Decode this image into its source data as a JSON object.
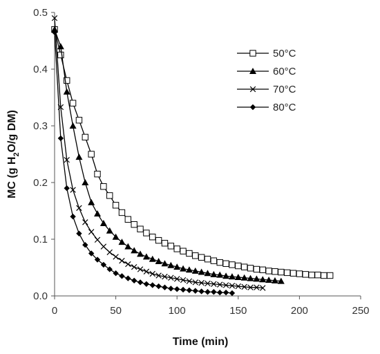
{
  "chart_data": {
    "type": "line",
    "xlabel": "Time (min)",
    "ylabel_parts": [
      "MC (g H",
      "2",
      "O/g DM)"
    ],
    "xlim": [
      0,
      250
    ],
    "ylim": [
      0,
      0.5
    ],
    "x_ticks": [
      "0",
      "50",
      "100",
      "150",
      "200",
      "250"
    ],
    "y_ticks": [
      "0.0",
      "0.1",
      "0.2",
      "0.3",
      "0.4",
      "0.5"
    ],
    "grid": false,
    "legend_position": "top-right",
    "series": [
      {
        "name": "50°C",
        "marker": "square-open",
        "x": [
          0,
          5,
          10,
          15,
          20,
          25,
          30,
          35,
          40,
          45,
          50,
          55,
          60,
          65,
          70,
          75,
          80,
          85,
          90,
          95,
          100,
          105,
          110,
          115,
          120,
          125,
          130,
          135,
          140,
          145,
          150,
          155,
          160,
          165,
          170,
          175,
          180,
          185,
          190,
          195,
          200,
          205,
          210,
          215,
          220,
          225
        ],
        "y": [
          0.47,
          0.425,
          0.38,
          0.34,
          0.31,
          0.28,
          0.25,
          0.215,
          0.193,
          0.177,
          0.16,
          0.147,
          0.135,
          0.126,
          0.118,
          0.111,
          0.104,
          0.098,
          0.093,
          0.088,
          0.083,
          0.079,
          0.075,
          0.071,
          0.068,
          0.065,
          0.062,
          0.059,
          0.057,
          0.055,
          0.053,
          0.051,
          0.049,
          0.047,
          0.046,
          0.044,
          0.043,
          0.042,
          0.041,
          0.04,
          0.039,
          0.038,
          0.037,
          0.037,
          0.036,
          0.036
        ]
      },
      {
        "name": "60°C",
        "marker": "triangle-filled",
        "x": [
          0,
          5,
          10,
          15,
          20,
          25,
          30,
          35,
          40,
          45,
          50,
          55,
          60,
          65,
          70,
          75,
          80,
          85,
          90,
          95,
          100,
          105,
          110,
          115,
          120,
          125,
          130,
          135,
          140,
          145,
          150,
          155,
          160,
          165,
          170,
          175,
          180,
          185
        ],
        "y": [
          0.47,
          0.44,
          0.36,
          0.3,
          0.245,
          0.2,
          0.165,
          0.145,
          0.128,
          0.115,
          0.104,
          0.095,
          0.087,
          0.08,
          0.074,
          0.069,
          0.065,
          0.061,
          0.057,
          0.054,
          0.051,
          0.048,
          0.046,
          0.044,
          0.042,
          0.04,
          0.038,
          0.037,
          0.035,
          0.034,
          0.033,
          0.032,
          0.031,
          0.03,
          0.029,
          0.028,
          0.027,
          0.026
        ]
      },
      {
        "name": "70°C",
        "marker": "x",
        "x": [
          0,
          5,
          10,
          15,
          20,
          25,
          30,
          35,
          40,
          45,
          50,
          55,
          60,
          65,
          70,
          75,
          80,
          85,
          90,
          95,
          100,
          105,
          110,
          115,
          120,
          125,
          130,
          135,
          140,
          145,
          150,
          155,
          160,
          165,
          170
        ],
        "y": [
          0.49,
          0.333,
          0.24,
          0.187,
          0.155,
          0.13,
          0.113,
          0.099,
          0.087,
          0.077,
          0.069,
          0.062,
          0.056,
          0.051,
          0.047,
          0.043,
          0.039,
          0.036,
          0.034,
          0.032,
          0.03,
          0.028,
          0.026,
          0.024,
          0.023,
          0.022,
          0.021,
          0.02,
          0.019,
          0.018,
          0.017,
          0.016,
          0.015,
          0.015,
          0.014
        ]
      },
      {
        "name": "80°C",
        "marker": "diamond-filled",
        "x": [
          0,
          5,
          10,
          15,
          20,
          25,
          30,
          35,
          40,
          45,
          50,
          55,
          60,
          65,
          70,
          75,
          80,
          85,
          90,
          95,
          100,
          105,
          110,
          115,
          120,
          125,
          130,
          135,
          140,
          145
        ],
        "y": [
          0.465,
          0.278,
          0.19,
          0.14,
          0.11,
          0.09,
          0.075,
          0.064,
          0.055,
          0.047,
          0.04,
          0.035,
          0.031,
          0.027,
          0.024,
          0.021,
          0.019,
          0.017,
          0.015,
          0.013,
          0.012,
          0.011,
          0.01,
          0.009,
          0.008,
          0.007,
          0.007,
          0.006,
          0.006,
          0.005
        ]
      }
    ]
  }
}
